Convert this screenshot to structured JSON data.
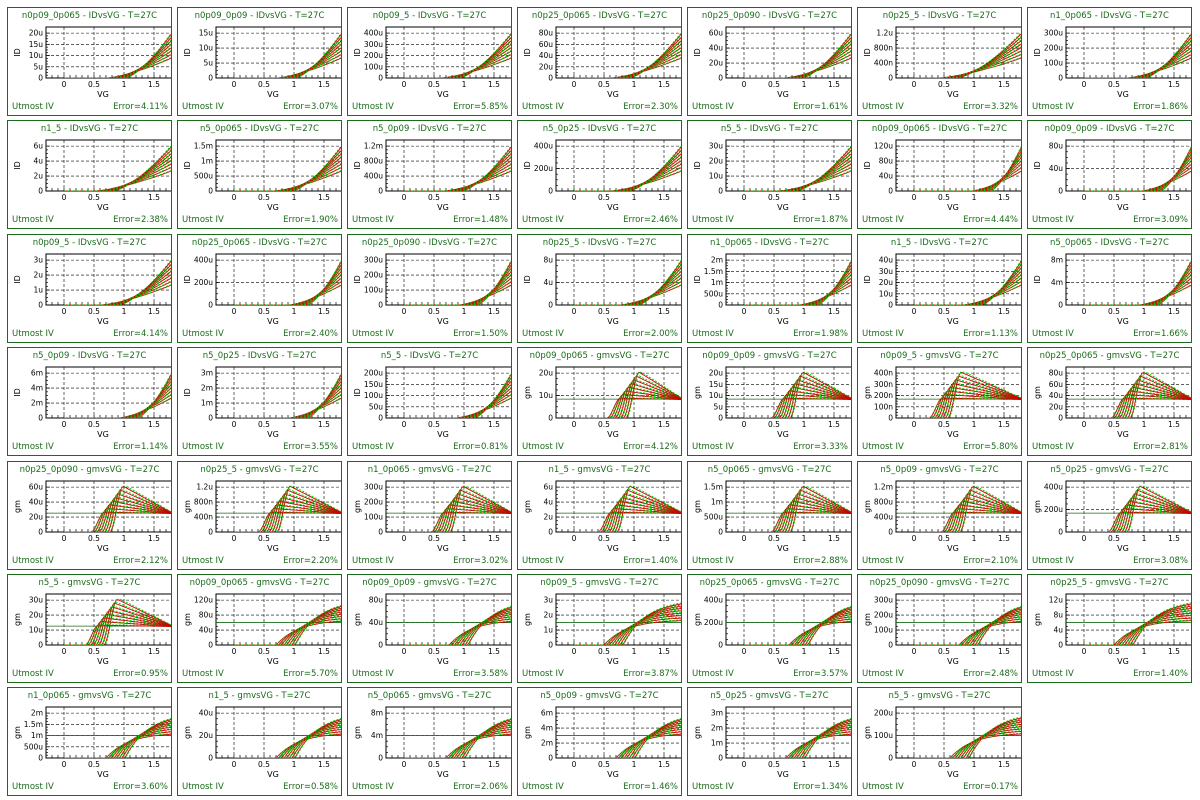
{
  "footer_label": "Utmost IV",
  "chart_data": [
    {
      "title": "n0p09_0p065 - IDvsVG - T=27C",
      "type": "line",
      "kind": "id",
      "xlabel": "VG",
      "ylabel": "ID",
      "xticks": [
        "0",
        "0.5",
        "1",
        "1.5"
      ],
      "yticks": [
        "0",
        "5u",
        "10u",
        "15u",
        "20u"
      ],
      "error": "Error=4.11%",
      "vth": 0.7
    },
    {
      "title": "n0p09_0p09 - IDvsVG - T=27C",
      "type": "line",
      "kind": "id",
      "xlabel": "VG",
      "ylabel": "ID",
      "xticks": [
        "0",
        "0.5",
        "1",
        "1.5"
      ],
      "yticks": [
        "0",
        "5u",
        "10u",
        "15u"
      ],
      "error": "Error=3.07%",
      "vth": 0.7
    },
    {
      "title": "n0p09_5 - IDvsVG - T=27C",
      "type": "line",
      "kind": "id",
      "xlabel": "VG",
      "ylabel": "ID",
      "xticks": [
        "0",
        "0.5",
        "1",
        "1.5"
      ],
      "yticks": [
        "0",
        "100u",
        "200u",
        "300u",
        "400u"
      ],
      "error": "Error=5.85%",
      "vth": 0.6
    },
    {
      "title": "n0p25_0p065 - IDvsVG - T=27C",
      "type": "line",
      "kind": "id",
      "xlabel": "VG",
      "ylabel": "ID",
      "xticks": [
        "0",
        "0.5",
        "1",
        "1.5"
      ],
      "yticks": [
        "0",
        "20u",
        "40u",
        "60u",
        "80u"
      ],
      "error": "Error=2.30%",
      "vth": 0.6
    },
    {
      "title": "n0p25_0p090 - IDvsVG - T=27C",
      "type": "line",
      "kind": "id",
      "xlabel": "VG",
      "ylabel": "ID",
      "xticks": [
        "0",
        "0.5",
        "1",
        "1.5"
      ],
      "yticks": [
        "0",
        "20u",
        "40u",
        "60u"
      ],
      "error": "Error=1.61%",
      "vth": 0.65
    },
    {
      "title": "n0p25_5 - IDvsVG - T=27C",
      "type": "line",
      "kind": "id",
      "xlabel": "VG",
      "ylabel": "ID",
      "xticks": [
        "0",
        "0.5",
        "1",
        "1.5"
      ],
      "yticks": [
        "0",
        "400n",
        "800n",
        "1.2u"
      ],
      "error": "Error=3.32%",
      "vth": 0.4
    },
    {
      "title": "n1_0p065 - IDvsVG - T=27C",
      "type": "line",
      "kind": "id",
      "xlabel": "VG",
      "ylabel": "ID",
      "xticks": [
        "0",
        "0.5",
        "1",
        "1.5"
      ],
      "yticks": [
        "0",
        "100u",
        "200u",
        "300u"
      ],
      "error": "Error=1.86%",
      "vth": 0.7
    },
    {
      "title": "n1_5 - IDvsVG - T=27C",
      "type": "line",
      "kind": "id",
      "xlabel": "VG",
      "ylabel": "ID",
      "xticks": [
        "0",
        "0.5",
        "1",
        "1.5"
      ],
      "yticks": [
        "0",
        "2u",
        "4u",
        "6u"
      ],
      "error": "Error=2.38%",
      "vth": 0.5
    },
    {
      "title": "n5_0p065 - IDvsVG - T=27C",
      "type": "line",
      "kind": "id",
      "xlabel": "VG",
      "ylabel": "ID",
      "xticks": [
        "0",
        "0.5",
        "1",
        "1.5"
      ],
      "yticks": [
        "0",
        "500u",
        "1m",
        "1.5m"
      ],
      "error": "Error=1.90%",
      "vth": 0.65
    },
    {
      "title": "n5_0p09 - IDvsVG - T=27C",
      "type": "line",
      "kind": "id",
      "xlabel": "VG",
      "ylabel": "ID",
      "xticks": [
        "0",
        "0.5",
        "1",
        "1.5"
      ],
      "yticks": [
        "0",
        "400u",
        "800u",
        "1.2m"
      ],
      "error": "Error=1.48%",
      "vth": 0.65
    },
    {
      "title": "n5_0p25 - IDvsVG - T=27C",
      "type": "line",
      "kind": "id",
      "xlabel": "VG",
      "ylabel": "ID",
      "xticks": [
        "0",
        "0.5",
        "1",
        "1.5"
      ],
      "yticks": [
        "0",
        "200u",
        "400u"
      ],
      "error": "Error=2.46%",
      "vth": 0.6
    },
    {
      "title": "n5_5 - IDvsVG - T=27C",
      "type": "line",
      "kind": "id",
      "xlabel": "VG",
      "ylabel": "ID",
      "xticks": [
        "0",
        "0.5",
        "1",
        "1.5"
      ],
      "yticks": [
        "0",
        "10u",
        "20u",
        "30u"
      ],
      "error": "Error=1.87%",
      "vth": 0.55
    },
    {
      "title": "n0p09_0p065 - IDvsVG - T=27C",
      "type": "line",
      "kind": "id",
      "xlabel": "VG",
      "ylabel": "ID",
      "xticks": [
        "0",
        "0.5",
        "1",
        "1.5"
      ],
      "yticks": [
        "0",
        "40u",
        "80u",
        "120u"
      ],
      "error": "Error=4.44%",
      "vth": 0.95
    },
    {
      "title": "n0p09_0p09 - IDvsVG - T=27C",
      "type": "line",
      "kind": "id",
      "xlabel": "VG",
      "ylabel": "ID",
      "xticks": [
        "0",
        "0.5",
        "1",
        "1.5"
      ],
      "yticks": [
        "0",
        "40u",
        "80u"
      ],
      "error": "Error=3.09%",
      "vth": 0.95
    },
    {
      "title": "n0p09_5 - IDvsVG - T=27C",
      "type": "line",
      "kind": "id",
      "xlabel": "VG",
      "ylabel": "ID",
      "xticks": [
        "0",
        "0.5",
        "1",
        "1.5"
      ],
      "yticks": [
        "0",
        "1u",
        "2u",
        "3u"
      ],
      "error": "Error=4.14%",
      "vth": 0.6
    },
    {
      "title": "n0p25_0p065 - IDvsVG - T=27C",
      "type": "line",
      "kind": "id",
      "xlabel": "VG",
      "ylabel": "ID",
      "xticks": [
        "0",
        "0.5",
        "1",
        "1.5"
      ],
      "yticks": [
        "0",
        "200u",
        "400u"
      ],
      "error": "Error=2.40%",
      "vth": 0.9
    },
    {
      "title": "n0p25_0p090 - IDvsVG - T=27C",
      "type": "line",
      "kind": "id",
      "xlabel": "VG",
      "ylabel": "ID",
      "xticks": [
        "0",
        "0.5",
        "1",
        "1.5"
      ],
      "yticks": [
        "0",
        "100u",
        "200u",
        "300u"
      ],
      "error": "Error=1.50%",
      "vth": 0.9
    },
    {
      "title": "n0p25_5 - IDvsVG - T=27C",
      "type": "line",
      "kind": "id",
      "xlabel": "VG",
      "ylabel": "ID",
      "xticks": [
        "0",
        "0.5",
        "1",
        "1.5"
      ],
      "yticks": [
        "0",
        "4u",
        "8u"
      ],
      "error": "Error=2.00%",
      "vth": 0.75
    },
    {
      "title": "n1_0p065 - IDvsVG - T=27C",
      "type": "line",
      "kind": "id",
      "xlabel": "VG",
      "ylabel": "ID",
      "xticks": [
        "0",
        "0.5",
        "1",
        "1.5"
      ],
      "yticks": [
        "0",
        "500u",
        "1m",
        "1.5m",
        "2m"
      ],
      "error": "Error=1.98%",
      "vth": 0.9
    },
    {
      "title": "n1_5 - IDvsVG - T=27C",
      "type": "line",
      "kind": "id",
      "xlabel": "VG",
      "ylabel": "ID",
      "xticks": [
        "0",
        "0.5",
        "1",
        "1.5"
      ],
      "yticks": [
        "0",
        "10u",
        "20u",
        "30u",
        "40u"
      ],
      "error": "Error=1.13%",
      "vth": 0.8
    },
    {
      "title": "n5_0p065 - IDvsVG - T=27C",
      "type": "line",
      "kind": "id",
      "xlabel": "VG",
      "ylabel": "ID",
      "xticks": [
        "0",
        "0.5",
        "1",
        "1.5"
      ],
      "yticks": [
        "0",
        "4m",
        "8m"
      ],
      "error": "Error=1.66%",
      "vth": 0.9
    },
    {
      "title": "n5_0p09 - IDvsVG - T=27C",
      "type": "line",
      "kind": "id",
      "xlabel": "VG",
      "ylabel": "ID",
      "xticks": [
        "0",
        "0.5",
        "1",
        "1.5"
      ],
      "yticks": [
        "0",
        "2m",
        "4m",
        "6m"
      ],
      "error": "Error=1.14%",
      "vth": 0.9
    },
    {
      "title": "n5_0p25 - IDvsVG - T=27C",
      "type": "line",
      "kind": "id",
      "xlabel": "VG",
      "ylabel": "ID",
      "xticks": [
        "0",
        "0.5",
        "1",
        "1.5"
      ],
      "yticks": [
        "0",
        "1m",
        "2m",
        "3m"
      ],
      "error": "Error=3.55%",
      "vth": 0.9
    },
    {
      "title": "n5_5 - IDvsVG - T=27C",
      "type": "line",
      "kind": "id",
      "xlabel": "VG",
      "ylabel": "ID",
      "xticks": [
        "0",
        "0.5",
        "1",
        "1.5"
      ],
      "yticks": [
        "0",
        "50u",
        "100u",
        "150u",
        "200u"
      ],
      "error": "Error=0.81%",
      "vth": 0.85
    },
    {
      "title": "n0p09_0p065 - gmvsVG - T=27C",
      "type": "line",
      "kind": "gmpeak",
      "xlabel": "VG",
      "ylabel": "gm",
      "xticks": [
        "0",
        "0.5",
        "1",
        "1.5"
      ],
      "yticks": [
        "0",
        "10u",
        "20u"
      ],
      "error": "Error=4.12%",
      "vth": 0.55
    },
    {
      "title": "n0p09_0p09 - gmvsVG - T=27C",
      "type": "line",
      "kind": "gmpeak",
      "xlabel": "VG",
      "ylabel": "gm",
      "xticks": [
        "0",
        "0.5",
        "1",
        "1.5"
      ],
      "yticks": [
        "0",
        "5u",
        "10u",
        "15u",
        "20u"
      ],
      "error": "Error=3.33%",
      "vth": 0.45
    },
    {
      "title": "n0p09_5 - gmvsVG - T=27C",
      "type": "line",
      "kind": "gmpeak",
      "xlabel": "VG",
      "ylabel": "gm",
      "xticks": [
        "0",
        "0.5",
        "1",
        "1.5"
      ],
      "yticks": [
        "0",
        "100n",
        "200n",
        "300n",
        "400n"
      ],
      "error": "Error=5.80%",
      "vth": 0.25
    },
    {
      "title": "n0p25_0p065 - gmvsVG - T=27C",
      "type": "line",
      "kind": "gmpeak",
      "xlabel": "VG",
      "ylabel": "gm",
      "xticks": [
        "0",
        "0.5",
        "1",
        "1.5"
      ],
      "yticks": [
        "0",
        "20u",
        "40u",
        "60u",
        "80u"
      ],
      "error": "Error=2.81%",
      "vth": 0.45
    },
    {
      "title": "n0p25_0p090 - gmvsVG - T=27C",
      "type": "line",
      "kind": "gmpeak",
      "xlabel": "VG",
      "ylabel": "gm",
      "xticks": [
        "0",
        "0.5",
        "1",
        "1.5"
      ],
      "yticks": [
        "0",
        "20u",
        "40u",
        "60u"
      ],
      "error": "Error=2.12%",
      "vth": 0.45
    },
    {
      "title": "n0p25_5 - gmvsVG - T=27C",
      "type": "line",
      "kind": "gmpeak",
      "xlabel": "VG",
      "ylabel": "gm",
      "xticks": [
        "0",
        "0.5",
        "1",
        "1.5"
      ],
      "yticks": [
        "0",
        "400n",
        "800n",
        "1.2u"
      ],
      "error": "Error=2.20%",
      "vth": 0.4
    },
    {
      "title": "n1_0p065 - gmvsVG - T=27C",
      "type": "line",
      "kind": "gmpeak",
      "xlabel": "VG",
      "ylabel": "gm",
      "xticks": [
        "0",
        "0.5",
        "1",
        "1.5"
      ],
      "yticks": [
        "0",
        "100u",
        "200u",
        "300u"
      ],
      "error": "Error=3.02%",
      "vth": 0.45
    },
    {
      "title": "n1_5 - gmvsVG - T=27C",
      "type": "line",
      "kind": "gmpeak",
      "xlabel": "VG",
      "ylabel": "gm",
      "xticks": [
        "0",
        "0.5",
        "1",
        "1.5"
      ],
      "yticks": [
        "0",
        "2u",
        "4u",
        "6u"
      ],
      "error": "Error=1.40%",
      "vth": 0.4
    },
    {
      "title": "n5_0p065 - gmvsVG - T=27C",
      "type": "line",
      "kind": "gmpeak",
      "xlabel": "VG",
      "ylabel": "gm",
      "xticks": [
        "0",
        "0.5",
        "1",
        "1.5"
      ],
      "yticks": [
        "0",
        "500u",
        "1m",
        "1.5m"
      ],
      "error": "Error=2.88%",
      "vth": 0.45
    },
    {
      "title": "n5_0p09 - gmvsVG - T=27C",
      "type": "line",
      "kind": "gmpeak",
      "xlabel": "VG",
      "ylabel": "gm",
      "xticks": [
        "0",
        "0.5",
        "1",
        "1.5"
      ],
      "yticks": [
        "0",
        "400u",
        "800u",
        "1.2m"
      ],
      "error": "Error=2.10%",
      "vth": 0.45
    },
    {
      "title": "n5_0p25 - gmvsVG - T=27C",
      "type": "line",
      "kind": "gmpeak",
      "xlabel": "VG",
      "ylabel": "gm",
      "xticks": [
        "0",
        "0.5",
        "1",
        "1.5"
      ],
      "yticks": [
        "0",
        "200u",
        "400u"
      ],
      "error": "Error=3.08%",
      "vth": 0.4
    },
    {
      "title": "n5_5 - gmvsVG - T=27C",
      "type": "line",
      "kind": "gmpeak",
      "xlabel": "VG",
      "ylabel": "gm",
      "xticks": [
        "0",
        "0.5",
        "1",
        "1.5"
      ],
      "yticks": [
        "0",
        "10u",
        "20u",
        "30u"
      ],
      "error": "Error=0.95%",
      "vth": 0.35
    },
    {
      "title": "n0p09_0p065 - gmvsVG - T=27C",
      "type": "line",
      "kind": "gmsat",
      "xlabel": "VG",
      "ylabel": "gm",
      "xticks": [
        "0",
        "0.5",
        "1",
        "1.5"
      ],
      "yticks": [
        "0",
        "40u",
        "80u",
        "120u"
      ],
      "error": "Error=5.70%",
      "vth": 0.7
    },
    {
      "title": "n0p09_0p09 - gmvsVG - T=27C",
      "type": "line",
      "kind": "gmsat",
      "xlabel": "VG",
      "ylabel": "gm",
      "xticks": [
        "0",
        "0.5",
        "1",
        "1.5"
      ],
      "yticks": [
        "0",
        "40u",
        "80u"
      ],
      "error": "Error=3.58%",
      "vth": 0.75
    },
    {
      "title": "n0p09_5 - gmvsVG - T=27C",
      "type": "line",
      "kind": "gmsat",
      "xlabel": "VG",
      "ylabel": "gm",
      "xticks": [
        "0",
        "0.5",
        "1",
        "1.5"
      ],
      "yticks": [
        "0",
        "1u",
        "2u",
        "3u"
      ],
      "error": "Error=3.87%",
      "vth": 0.5
    },
    {
      "title": "n0p25_0p065 - gmvsVG - T=27C",
      "type": "line",
      "kind": "gmsat",
      "xlabel": "VG",
      "ylabel": "gm",
      "xticks": [
        "0",
        "0.5",
        "1",
        "1.5"
      ],
      "yticks": [
        "0",
        "200u",
        "400u"
      ],
      "error": "Error=3.57%",
      "vth": 0.75
    },
    {
      "title": "n0p25_0p090 - gmvsVG - T=27C",
      "type": "line",
      "kind": "gmsat",
      "xlabel": "VG",
      "ylabel": "gm",
      "xticks": [
        "0",
        "0.5",
        "1",
        "1.5"
      ],
      "yticks": [
        "0",
        "100u",
        "200u",
        "300u"
      ],
      "error": "Error=2.48%",
      "vth": 0.75
    },
    {
      "title": "n0p25_5 - gmvsVG - T=27C",
      "type": "line",
      "kind": "gmsat",
      "xlabel": "VG",
      "ylabel": "gm",
      "xticks": [
        "0",
        "0.5",
        "1",
        "1.5"
      ],
      "yticks": [
        "0",
        "4u",
        "8u",
        "12u"
      ],
      "error": "Error=1.40%",
      "vth": 0.5
    },
    {
      "title": "n1_0p065 - gmvsVG - T=27C",
      "type": "line",
      "kind": "gmsat",
      "xlabel": "VG",
      "ylabel": "gm",
      "xticks": [
        "0",
        "0.5",
        "1",
        "1.5"
      ],
      "yticks": [
        "0",
        "500u",
        "1m",
        "1.5m",
        "2m"
      ],
      "error": "Error=3.60%",
      "vth": 0.7
    },
    {
      "title": "n1_5 - gmvsVG - T=27C",
      "type": "line",
      "kind": "gmsat",
      "xlabel": "VG",
      "ylabel": "gm",
      "xticks": [
        "0",
        "0.5",
        "1",
        "1.5"
      ],
      "yticks": [
        "0",
        "20u",
        "40u"
      ],
      "error": "Error=0.58%",
      "vth": 0.7
    },
    {
      "title": "n5_0p065 - gmvsVG - T=27C",
      "type": "line",
      "kind": "gmsat",
      "xlabel": "VG",
      "ylabel": "gm",
      "xticks": [
        "0",
        "0.5",
        "1",
        "1.5"
      ],
      "yticks": [
        "0",
        "4m",
        "8m"
      ],
      "error": "Error=2.06%",
      "vth": 0.7
    },
    {
      "title": "n5_0p09 - gmvsVG - T=27C",
      "type": "line",
      "kind": "gmsat",
      "xlabel": "VG",
      "ylabel": "gm",
      "xticks": [
        "0",
        "0.5",
        "1",
        "1.5"
      ],
      "yticks": [
        "0",
        "2m",
        "4m",
        "6m"
      ],
      "error": "Error=1.46%",
      "vth": 0.7
    },
    {
      "title": "n5_0p25 - gmvsVG - T=27C",
      "type": "line",
      "kind": "gmsat",
      "xlabel": "VG",
      "ylabel": "gm",
      "xticks": [
        "0",
        "0.5",
        "1",
        "1.5"
      ],
      "yticks": [
        "0",
        "1m",
        "2m",
        "3m"
      ],
      "error": "Error=1.34%",
      "vth": 0.7
    },
    {
      "title": "n5_5 - gmvsVG - T=27C",
      "type": "line",
      "kind": "gmsat",
      "xlabel": "VG",
      "ylabel": "gm",
      "xticks": [
        "0",
        "0.5",
        "1",
        "1.5"
      ],
      "yticks": [
        "0",
        "100u",
        "200u"
      ],
      "error": "Error=0.17%",
      "vth": 0.6
    }
  ],
  "colors": {
    "frame": "#1a6b1a",
    "measured": "#00cc00",
    "simulated": "#cc0000",
    "text": "#1a6b1a"
  }
}
